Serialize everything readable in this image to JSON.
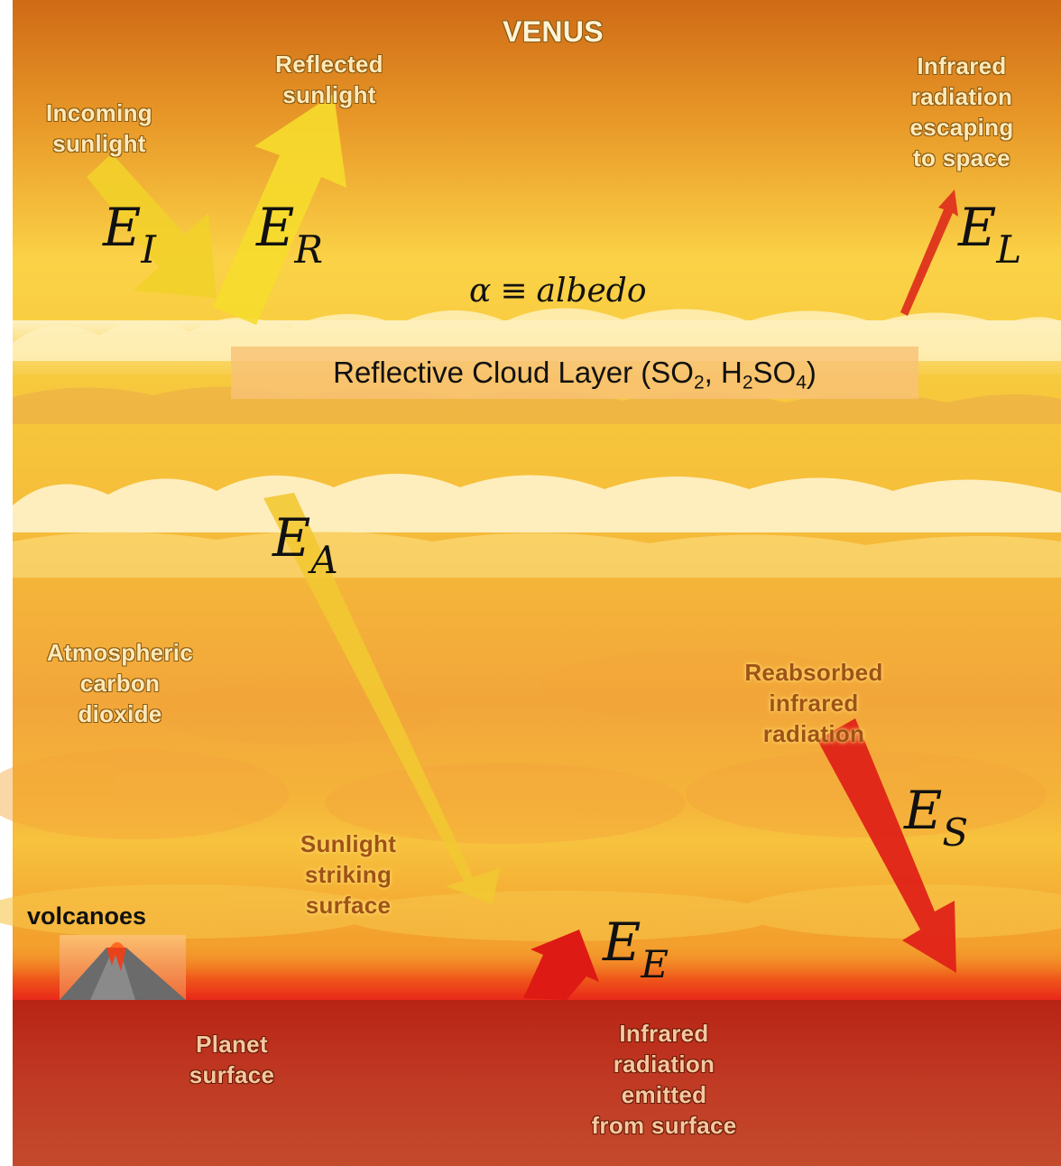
{
  "title": "VENUS",
  "labels": {
    "incoming": [
      "Incoming",
      "sunlight"
    ],
    "reflected": [
      "Reflected",
      "sunlight"
    ],
    "escaping": [
      "Infrared",
      "radiation",
      "escaping",
      "to space"
    ],
    "atmospheric": [
      "Atmospheric",
      "carbon",
      "dioxide"
    ],
    "reabsorbed": [
      "Reabsorbed",
      "infrared",
      "radiation"
    ],
    "striking": [
      "Sunlight",
      "striking",
      "surface"
    ],
    "planet": [
      "Planet",
      "surface"
    ],
    "emitted": [
      "Infrared",
      "radiation",
      "emitted",
      "from surface"
    ],
    "volcanoes": "volcanoes"
  },
  "symbols": {
    "incident": {
      "base": "E",
      "sub": "I"
    },
    "reflected": {
      "base": "E",
      "sub": "R"
    },
    "longwave": {
      "base": "E",
      "sub": "L"
    },
    "absorbed": {
      "base": "E",
      "sub": "A"
    },
    "surface_return": {
      "base": "E",
      "sub": "S"
    },
    "emitted": {
      "base": "E",
      "sub": "E"
    }
  },
  "albedo": {
    "symbol": "α",
    "operator": "≡",
    "word": "albedo"
  },
  "cloud_layer": {
    "prefix": "Reflective Cloud Layer (SO",
    "sub1": "2",
    "mid": ", H",
    "sub2": "2",
    "mid2": "SO",
    "sub3": "4",
    "suffix": ")"
  },
  "colors": {
    "sky_top": "#d9781a",
    "sky_mid": "#f7c537",
    "surface": "#b8281a",
    "sunlight_arrow": "#f4d21c",
    "infrared_arrow": "#d81e12"
  }
}
